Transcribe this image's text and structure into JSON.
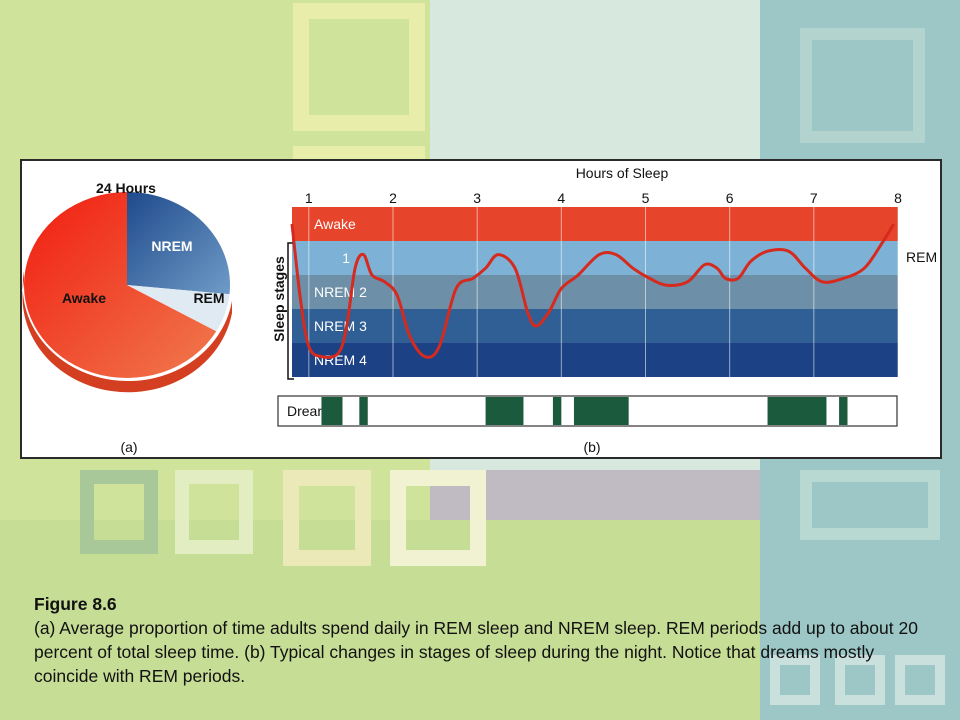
{
  "figure": {
    "pie": {
      "title": "24 Hours",
      "slices": [
        {
          "label": "Awake",
          "fraction": 0.667,
          "color": "#e8432a"
        },
        {
          "label": "NREM",
          "fraction": 0.266,
          "color": "#2f5f9e"
        },
        {
          "label": "REM",
          "fraction": 0.067,
          "color": "#dce9f2"
        }
      ],
      "panel_label": "(a)"
    },
    "hypnogram": {
      "x_axis_title": "Hours of Sleep",
      "x_ticks": [
        "1",
        "2",
        "3",
        "4",
        "5",
        "6",
        "7",
        "8"
      ],
      "y_axis_title": "Sleep stages",
      "stages": [
        {
          "label": "Awake",
          "color": "#e6452b"
        },
        {
          "label": "1",
          "color": "#7db2d6"
        },
        {
          "label": "NREM 2",
          "color": "#6e8fa8"
        },
        {
          "label": "NREM 3",
          "color": "#2f5f95"
        },
        {
          "label": "NREM 4",
          "color": "#1c4185"
        }
      ],
      "rem_label": "REM",
      "curve_color": "#d62a1f",
      "panel_label": "(b)"
    },
    "dreams": {
      "label": "Dreams",
      "color": "#1b5a3c",
      "intervals_hours": [
        [
          1.15,
          1.4
        ],
        [
          1.6,
          1.7
        ],
        [
          3.1,
          3.55
        ],
        [
          3.9,
          4.0
        ],
        [
          4.15,
          4.8
        ],
        [
          6.45,
          7.15
        ],
        [
          7.3,
          7.4
        ]
      ]
    }
  },
  "caption": {
    "title": "Figure 8.6",
    "text": "(a) Average proportion of time adults spend daily in REM sleep and NREM sleep. REM periods add up to about 20 percent of total sleep time. (b) Typical changes in stages of sleep during the night. Notice that dreams mostly coincide with REM periods."
  }
}
